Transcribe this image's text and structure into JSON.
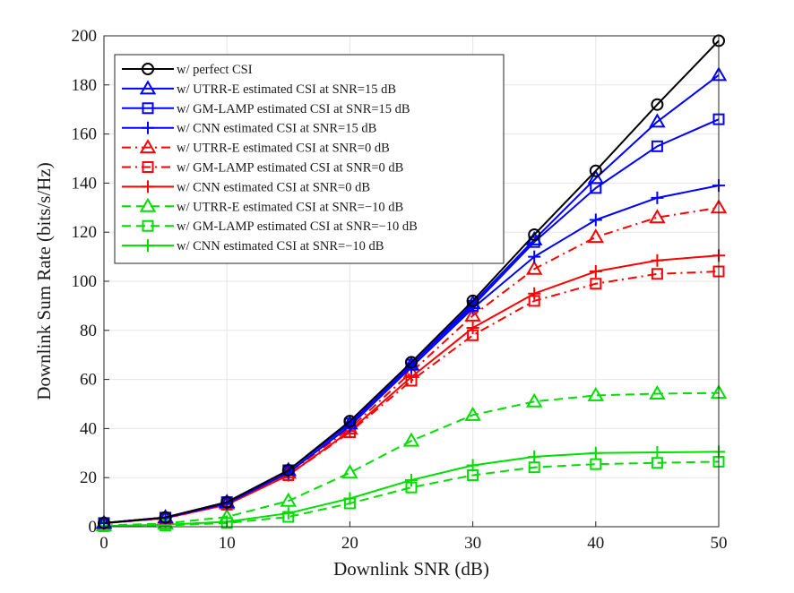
{
  "chart_data": {
    "type": "line",
    "title": "",
    "xlabel": "Downlink SNR (dB)",
    "ylabel": "Downlink Sum Rate (bits/s/Hz)",
    "xlim": [
      0,
      50
    ],
    "ylim": [
      0,
      200
    ],
    "x": [
      0,
      5,
      10,
      15,
      20,
      25,
      30,
      35,
      40,
      45,
      50
    ],
    "x_ticks": [
      0,
      10,
      20,
      30,
      40,
      50
    ],
    "y_ticks": [
      0,
      20,
      40,
      60,
      80,
      100,
      120,
      140,
      160,
      180,
      200
    ],
    "grid": true,
    "legend_position": "top-left",
    "series": [
      {
        "name": "w/ perfect CSI",
        "color": "#000000",
        "marker": "circle",
        "dash": "solid",
        "values": [
          1.5,
          3.8,
          10,
          23,
          43,
          67,
          92,
          119,
          145,
          172,
          198
        ]
      },
      {
        "name": "w/ UTRR-E estimated CSI at SNR=15 dB",
        "color": "#0000ff",
        "marker": "triangle",
        "dash": "solid",
        "values": [
          1.5,
          3.8,
          10,
          23,
          42,
          66,
          91,
          117,
          142,
          165,
          184
        ]
      },
      {
        "name": "w/ GM-LAMP estimated CSI at SNR=15 dB",
        "color": "#0000ff",
        "marker": "square",
        "dash": "solid",
        "values": [
          1.5,
          3.7,
          10,
          23,
          42,
          66,
          90,
          116,
          138,
          155,
          166
        ]
      },
      {
        "name": "w/ CNN estimated CSI at SNR=15 dB",
        "color": "#0000ff",
        "marker": "plus",
        "dash": "solid",
        "values": [
          1.5,
          3.7,
          9.5,
          22,
          41,
          65,
          89,
          110,
          125,
          134,
          139
        ]
      },
      {
        "name": "w/ UTRR-E estimated CSI at SNR=0 dB",
        "color": "#ff0000",
        "marker": "triangle",
        "dash": "dashdot",
        "values": [
          1.5,
          3.6,
          9.5,
          22,
          40,
          63,
          86,
          105,
          118,
          126,
          130
        ]
      },
      {
        "name": "w/ GM-LAMP estimated CSI at SNR=0 dB",
        "color": "#ff0000",
        "marker": "square",
        "dash": "dashdot",
        "values": [
          1.4,
          3.4,
          9,
          21,
          38.5,
          59.5,
          78,
          92,
          99,
          103,
          104
        ]
      },
      {
        "name": "w/ CNN estimated CSI at SNR=0 dB",
        "color": "#ff0000",
        "marker": "plus",
        "dash": "solid",
        "values": [
          1.4,
          3.5,
          9,
          21,
          39,
          61,
          81,
          95,
          104,
          108.5,
          110.5
        ]
      },
      {
        "name": "w/ UTRR-E estimated CSI at SNR=−10 dB",
        "color": "#00dd00",
        "marker": "triangle",
        "dash": "dashed",
        "values": [
          0.5,
          1.3,
          4,
          10.5,
          22,
          35,
          45.5,
          51,
          53.5,
          54.2,
          54.5
        ]
      },
      {
        "name": "w/ GM-LAMP estimated CSI at SNR=−10 dB",
        "color": "#00dd00",
        "marker": "square",
        "dash": "dashed",
        "values": [
          0.2,
          0.5,
          1.5,
          4,
          9.5,
          16,
          21,
          24.2,
          25.5,
          26,
          26.5
        ]
      },
      {
        "name": "w/ CNN estimated CSI at SNR=−10 dB",
        "color": "#00dd00",
        "marker": "plus",
        "dash": "solid",
        "values": [
          0.3,
          0.8,
          2,
          5.5,
          11.5,
          19,
          25,
          28.5,
          30,
          30.3,
          30.5
        ]
      }
    ]
  }
}
